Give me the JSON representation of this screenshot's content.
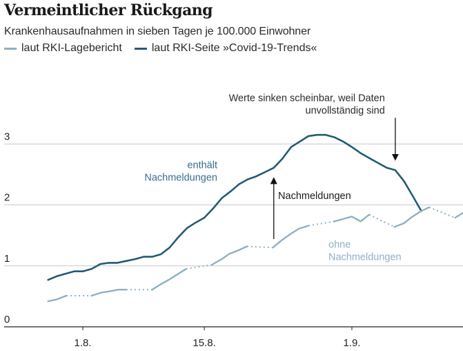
{
  "header": {
    "title": "Vermeintlicher Rückgang",
    "subtitle": "Krankenhausaufnahmen in sieben Tagen je 100.000 Einwohner"
  },
  "legend": [
    {
      "label": "laut RKI-Lagebericht",
      "color": "#8fb0c2"
    },
    {
      "label": "laut RKI-Seite »Covid-19-Trends«",
      "color": "#245a73"
    }
  ],
  "chart_data": {
    "type": "line",
    "title": "Vermeintlicher Rückgang",
    "subtitle": "Krankenhausaufnahmen in sieben Tagen je 100.000 Einwohner",
    "xlabel": "",
    "ylabel": "",
    "x_unit": "days since 1.8.",
    "xlim": [
      -8,
      43.8
    ],
    "ylim": [
      0,
      3.35
    ],
    "grid": true,
    "legend_position": "top-left",
    "y_ticks": [
      {
        "value": 0,
        "label": "0"
      },
      {
        "value": 1,
        "label": "1"
      },
      {
        "value": 2,
        "label": "2"
      },
      {
        "value": 3,
        "label": "3"
      }
    ],
    "x_ticks": [
      {
        "value": 0,
        "label": "1.8."
      },
      {
        "value": 14,
        "label": "15.8."
      },
      {
        "value": 31,
        "label": "1.9."
      }
    ],
    "series": [
      {
        "name": "laut RKI-Seite »Covid-19-Trends«",
        "color": "#245a73",
        "points": [
          [
            -4,
            0.77
          ],
          [
            -3,
            0.83
          ],
          [
            -2,
            0.87
          ],
          [
            -1,
            0.91
          ],
          [
            0,
            0.91
          ],
          [
            1,
            0.95
          ],
          [
            2,
            1.03
          ],
          [
            3,
            1.05
          ],
          [
            4,
            1.05
          ],
          [
            5,
            1.08
          ],
          [
            6,
            1.11
          ],
          [
            7,
            1.15
          ],
          [
            8,
            1.15
          ],
          [
            9,
            1.19
          ],
          [
            10,
            1.3
          ],
          [
            11,
            1.47
          ],
          [
            12,
            1.62
          ],
          [
            13,
            1.71
          ],
          [
            14,
            1.79
          ],
          [
            15,
            1.94
          ],
          [
            16,
            2.11
          ],
          [
            17,
            2.22
          ],
          [
            18,
            2.34
          ],
          [
            19,
            2.42
          ],
          [
            20,
            2.47
          ],
          [
            21,
            2.54
          ],
          [
            22,
            2.61
          ],
          [
            23,
            2.76
          ],
          [
            24,
            2.95
          ],
          [
            25,
            3.04
          ],
          [
            26,
            3.13
          ],
          [
            27,
            3.15
          ],
          [
            28,
            3.15
          ],
          [
            29,
            3.11
          ],
          [
            30,
            3.04
          ],
          [
            31,
            2.95
          ],
          [
            32,
            2.85
          ],
          [
            33,
            2.77
          ],
          [
            34,
            2.69
          ],
          [
            35,
            2.61
          ],
          [
            36,
            2.57
          ],
          [
            37,
            2.39
          ],
          [
            38,
            2.15
          ],
          [
            39,
            1.9
          ]
        ]
      },
      {
        "name": "laut RKI-Lagebericht",
        "color": "#8fb0c2",
        "note": "dotted segments bridge days without report",
        "segments": [
          {
            "style": "solid",
            "points": [
              [
                -4,
                0.42
              ],
              [
                -3,
                0.45
              ],
              [
                -1.9,
                0.51
              ]
            ]
          },
          {
            "style": "dotted",
            "points": [
              [
                -1.9,
                0.51
              ],
              [
                1,
                0.51
              ]
            ]
          },
          {
            "style": "solid",
            "points": [
              [
                1,
                0.51
              ],
              [
                2.1,
                0.56
              ],
              [
                3,
                0.58
              ],
              [
                4.1,
                0.61
              ],
              [
                5,
                0.61
              ]
            ]
          },
          {
            "style": "dotted",
            "points": [
              [
                5,
                0.61
              ],
              [
                8,
                0.61
              ]
            ]
          },
          {
            "style": "solid",
            "points": [
              [
                8,
                0.61
              ],
              [
                9,
                0.7
              ],
              [
                10,
                0.78
              ],
              [
                11,
                0.87
              ],
              [
                11.9,
                0.95
              ]
            ]
          },
          {
            "style": "dotted",
            "points": [
              [
                11.9,
                0.95
              ],
              [
                14.9,
                1.02
              ]
            ]
          },
          {
            "style": "solid",
            "points": [
              [
                14.9,
                1.02
              ],
              [
                16,
                1.11
              ],
              [
                16.9,
                1.2
              ],
              [
                18,
                1.26
              ],
              [
                18.9,
                1.32
              ]
            ]
          },
          {
            "style": "dotted",
            "points": [
              [
                18.9,
                1.32
              ],
              [
                21.9,
                1.3
              ]
            ]
          },
          {
            "style": "solid",
            "points": [
              [
                21.9,
                1.3
              ],
              [
                22.9,
                1.42
              ],
              [
                23.9,
                1.52
              ],
              [
                24.9,
                1.61
              ],
              [
                26,
                1.66
              ]
            ]
          },
          {
            "style": "dotted",
            "points": [
              [
                26,
                1.66
              ],
              [
                29,
                1.73
              ]
            ]
          },
          {
            "style": "solid",
            "points": [
              [
                29,
                1.73
              ],
              [
                30,
                1.77
              ],
              [
                31,
                1.81
              ],
              [
                32,
                1.73
              ],
              [
                33,
                1.84
              ]
            ]
          },
          {
            "style": "dotted",
            "points": [
              [
                33,
                1.84
              ],
              [
                35.9,
                1.64
              ]
            ]
          },
          {
            "style": "solid",
            "points": [
              [
                35.9,
                1.64
              ],
              [
                37,
                1.7
              ],
              [
                37.9,
                1.8
              ],
              [
                39,
                1.9
              ],
              [
                39.9,
                1.96
              ]
            ]
          },
          {
            "style": "dotted",
            "points": [
              [
                39.9,
                1.96
              ],
              [
                42.9,
                1.79
              ]
            ]
          },
          {
            "style": "solid",
            "points": [
              [
                42.9,
                1.79
              ],
              [
                43.8,
                1.87
              ]
            ]
          }
        ]
      }
    ],
    "annotations": [
      {
        "id": "with-late",
        "lines": [
          "enthält",
          "Nachmeldungen"
        ],
        "color": "#3c6e86",
        "at": [
          15.5,
          2.6
        ],
        "align": "right"
      },
      {
        "id": "late-reports",
        "lines": [
          "Nachmeldungen"
        ],
        "color": "#1a1a1a",
        "at": [
          22.5,
          2.1
        ],
        "align": "left"
      },
      {
        "id": "without-late",
        "lines": [
          "ohne",
          "Nachmeldungen"
        ],
        "color": "#8fb0c2",
        "at": [
          28.3,
          1.3
        ],
        "align": "left"
      },
      {
        "id": "drop-note",
        "lines": [
          "Werte sinken scheinbar, weil Daten",
          "unvollständig sind"
        ],
        "color": "#2a2a2a",
        "at": [
          34.8,
          3.7
        ],
        "align": "right"
      }
    ],
    "arrows": [
      {
        "id": "arrow-late-reports",
        "from": [
          22,
          1.44
        ],
        "to": [
          22,
          2.4
        ],
        "direction": "up"
      },
      {
        "id": "arrow-drop",
        "from": [
          36,
          3.43
        ],
        "to": [
          36,
          2.78
        ],
        "direction": "down"
      }
    ]
  }
}
